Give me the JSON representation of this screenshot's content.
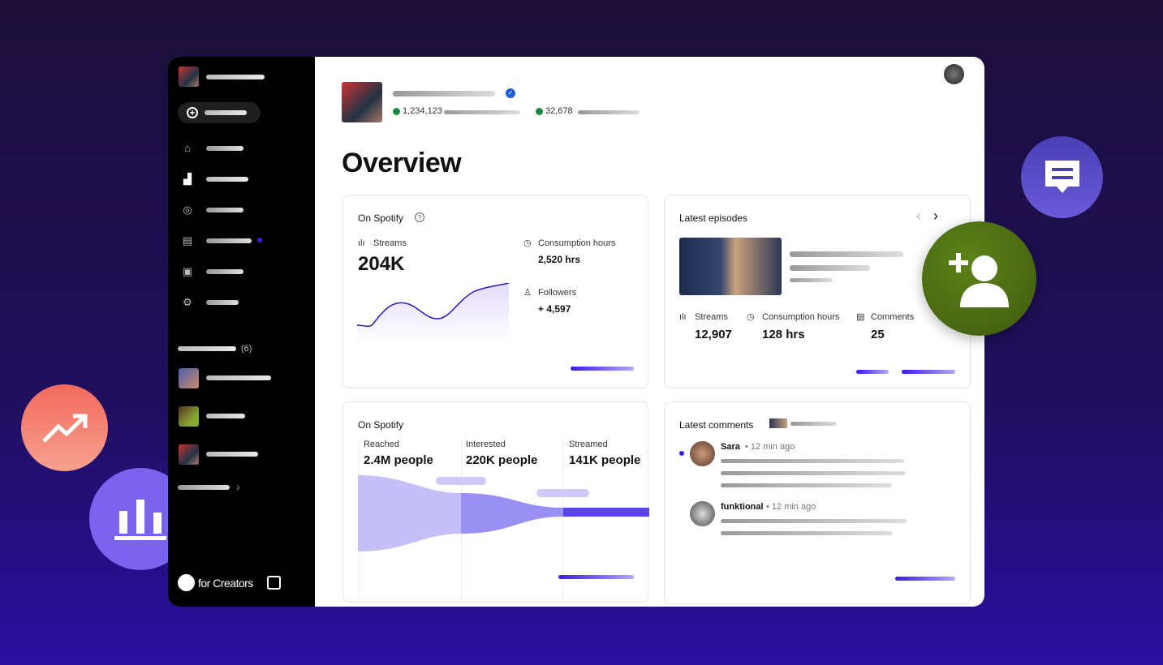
{
  "sidebar": {
    "playlist_count": "(6)",
    "brand": "for Creators",
    "nav_icons": [
      "home-icon",
      "bar-chart-icon",
      "podcast-icon",
      "comment-icon",
      "episodes-icon",
      "gear-icon"
    ]
  },
  "header": {
    "stat1": "1,234,123",
    "stat2": "32,678",
    "page_title": "Overview"
  },
  "card_spotify": {
    "title": "On Spotify",
    "streams_label": "Streams",
    "streams_value": "204K",
    "hours_label": "Consumption hours",
    "hours_value": "2,520 hrs",
    "followers_label": "Followers",
    "followers_value": "+ 4,597"
  },
  "card_episodes": {
    "title": "Latest episodes",
    "streams_label": "Streams",
    "streams_value": "12,907",
    "hours_label": "Consumption hours",
    "hours_value": "128 hrs",
    "comments_label": "Comments",
    "comments_value": "25"
  },
  "card_funnel": {
    "title": "On Spotify",
    "stages": [
      {
        "label": "Reached",
        "value": "2.4M people"
      },
      {
        "label": "Interested",
        "value": "220K people"
      },
      {
        "label": "Streamed",
        "value": "141K people"
      }
    ]
  },
  "card_comments": {
    "title": "Latest comments",
    "comments": [
      {
        "user": "Sara",
        "time": "• 12 min ago"
      },
      {
        "user": "funktional",
        "time": "• 12 min ago"
      }
    ]
  },
  "colors": {
    "accent": "#3d1fe0",
    "verified": "#1e5fd6",
    "up_arrow": "#1a8a3a",
    "add_user_bg": "#4e6e14",
    "trend_bg": "#f47a6c",
    "chart_bubble": "#7b63f0",
    "comment_bubble": "#5a4cc8"
  }
}
